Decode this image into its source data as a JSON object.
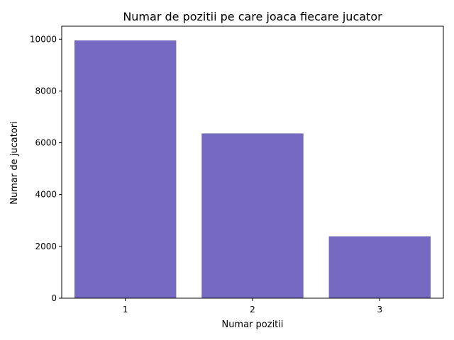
{
  "chart_data": {
    "type": "bar",
    "title": "Numar de pozitii pe care joaca fiecare jucator",
    "xlabel": "Numar pozitii",
    "ylabel": "Numar de jucatori",
    "categories": [
      "1",
      "2",
      "3"
    ],
    "values": [
      9950,
      6360,
      2390
    ],
    "ylim": [
      0,
      10500
    ],
    "yticks": [
      0,
      2000,
      4000,
      6000,
      8000,
      10000
    ],
    "bar_color": "#7569c1",
    "grid": false,
    "legend": "none"
  }
}
